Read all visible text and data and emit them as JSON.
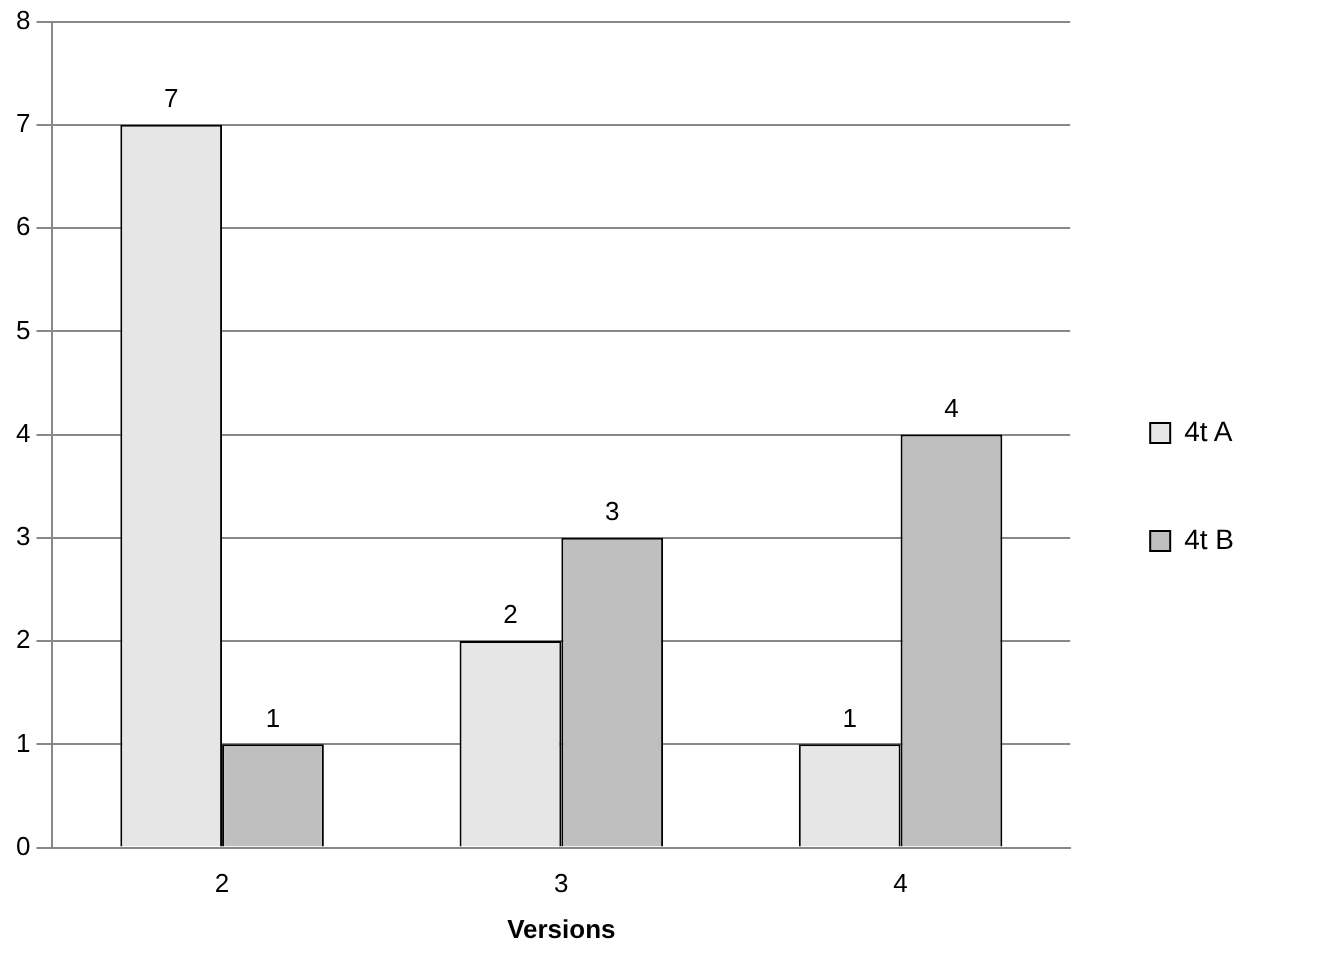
{
  "chart_data": {
    "type": "bar",
    "xlabel": "Versions",
    "categories": [
      "2",
      "3",
      "4"
    ],
    "series": [
      {
        "name": "4t A",
        "color": "#e6e6e6",
        "values": [
          7,
          2,
          1
        ]
      },
      {
        "name": "4t B",
        "color": "#bfbfbf",
        "values": [
          1,
          3,
          4
        ]
      }
    ],
    "ylim": [
      0,
      8
    ],
    "yticks": [
      0,
      1,
      2,
      3,
      4,
      5,
      6,
      7,
      8
    ],
    "grid": "y",
    "legend": "right",
    "data_labels": true
  }
}
